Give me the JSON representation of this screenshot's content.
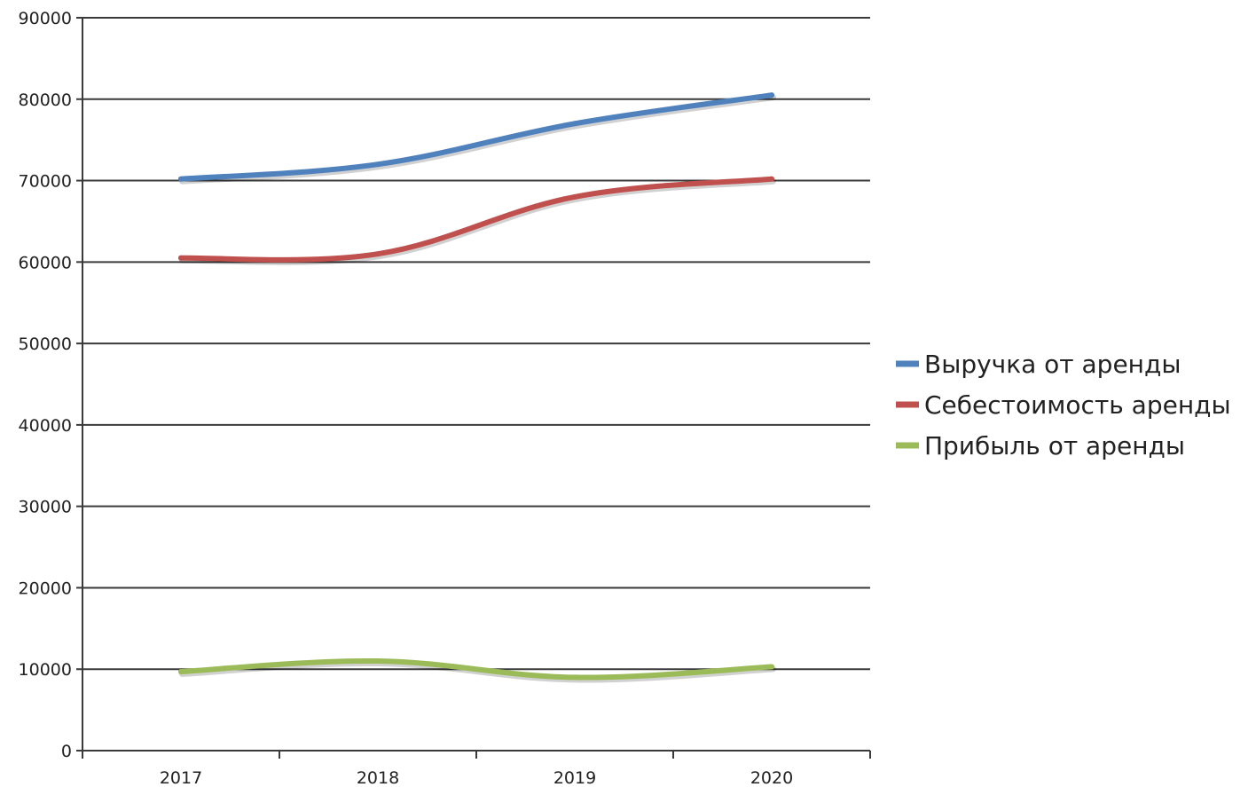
{
  "chart_data": {
    "type": "line",
    "categories": [
      "2017",
      "2018",
      "2019",
      "2020"
    ],
    "series": [
      {
        "name": "Выручка от аренды",
        "values": [
          70200,
          72000,
          77000,
          80500
        ],
        "color": "#4f81bd"
      },
      {
        "name": "Себестоимость аренды",
        "values": [
          60500,
          61000,
          68000,
          70200
        ],
        "color": "#c0504d"
      },
      {
        "name": "Прибыль от аренды",
        "values": [
          9700,
          11000,
          9000,
          10300
        ],
        "color": "#9bbb59"
      }
    ],
    "ylim": [
      0,
      90000
    ],
    "yticks": [
      "0",
      "10000",
      "20000",
      "30000",
      "40000",
      "50000",
      "60000",
      "70000",
      "80000",
      "90000"
    ],
    "grid": true,
    "legend_position": "right",
    "title": "",
    "xlabel": "",
    "ylabel": ""
  }
}
